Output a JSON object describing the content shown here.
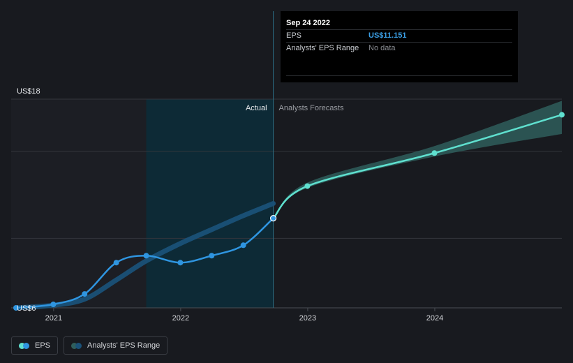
{
  "tooltip": {
    "date": "Sep 24 2022",
    "rows": [
      {
        "key": "EPS",
        "value": "US$11.151"
      },
      {
        "key": "Analysts' EPS Range",
        "value": "No data"
      }
    ]
  },
  "legend": {
    "eps_label": "EPS",
    "range_label": "Analysts' EPS Range"
  },
  "colors": {
    "background": "#181a1f",
    "eps_actual": "#2f95e0",
    "eps_forecast": "#5fe0cf",
    "range_actual": "#1a5178",
    "range_forecast": "#2f5e5c",
    "highlight_band": "#0d2a36"
  },
  "chart_data": {
    "type": "line",
    "y_top_label": "US$18",
    "y_bottom_label": "US$6",
    "ylim": [
      6,
      18
    ],
    "xlim": [
      "2020-09-01",
      "2024-12-31"
    ],
    "x_ticks": [
      {
        "label": "2021",
        "date": "2021-01-01"
      },
      {
        "label": "2022",
        "date": "2022-01-01"
      },
      {
        "label": "2023",
        "date": "2023-01-01"
      },
      {
        "label": "2024",
        "date": "2024-01-01"
      }
    ],
    "y_gridlines": [
      6,
      10,
      15,
      18
    ],
    "region_labels": {
      "actual": "Actual",
      "forecast": "Analysts Forecasts"
    },
    "split_date": "2022-09-24",
    "highlight_start": "2021-09-24",
    "series": [
      {
        "name": "EPS",
        "points": [
          {
            "x": "2020-09-15",
            "y": 6.0
          },
          {
            "x": "2020-12-31",
            "y": 6.2
          },
          {
            "x": "2021-03-31",
            "y": 6.8
          },
          {
            "x": "2021-06-30",
            "y": 8.6
          },
          {
            "x": "2021-09-24",
            "y": 9.0
          },
          {
            "x": "2021-12-31",
            "y": 8.6
          },
          {
            "x": "2022-03-31",
            "y": 9.0
          },
          {
            "x": "2022-06-30",
            "y": 9.6
          },
          {
            "x": "2022-09-24",
            "y": 11.151
          }
        ],
        "forecast": [
          {
            "x": "2022-09-24",
            "y": 11.151
          },
          {
            "x": "2022-12-31",
            "y": 13.0
          },
          {
            "x": "2023-12-31",
            "y": 14.9
          },
          {
            "x": "2024-12-31",
            "y": 17.1
          }
        ]
      },
      {
        "name": "Analysts' EPS Range",
        "actual_band": [
          {
            "x": "2020-09-15",
            "y": 6.0
          },
          {
            "x": "2020-12-31",
            "y": 6.15
          },
          {
            "x": "2021-03-31",
            "y": 6.5
          },
          {
            "x": "2021-06-30",
            "y": 7.6
          },
          {
            "x": "2021-09-24",
            "y": 8.7
          },
          {
            "x": "2021-12-31",
            "y": 9.7
          },
          {
            "x": "2022-03-31",
            "y": 10.5
          },
          {
            "x": "2022-06-30",
            "y": 11.3
          },
          {
            "x": "2022-09-24",
            "y": 12.0
          }
        ],
        "forecast_low": [
          {
            "x": "2022-09-24",
            "y": 11.151
          },
          {
            "x": "2022-12-31",
            "y": 12.9
          },
          {
            "x": "2023-12-31",
            "y": 14.7
          },
          {
            "x": "2024-12-31",
            "y": 16.0
          }
        ],
        "forecast_high": [
          {
            "x": "2022-09-24",
            "y": 11.151
          },
          {
            "x": "2022-12-31",
            "y": 13.2
          },
          {
            "x": "2023-12-31",
            "y": 15.3
          },
          {
            "x": "2024-12-31",
            "y": 17.9
          }
        ]
      }
    ]
  }
}
